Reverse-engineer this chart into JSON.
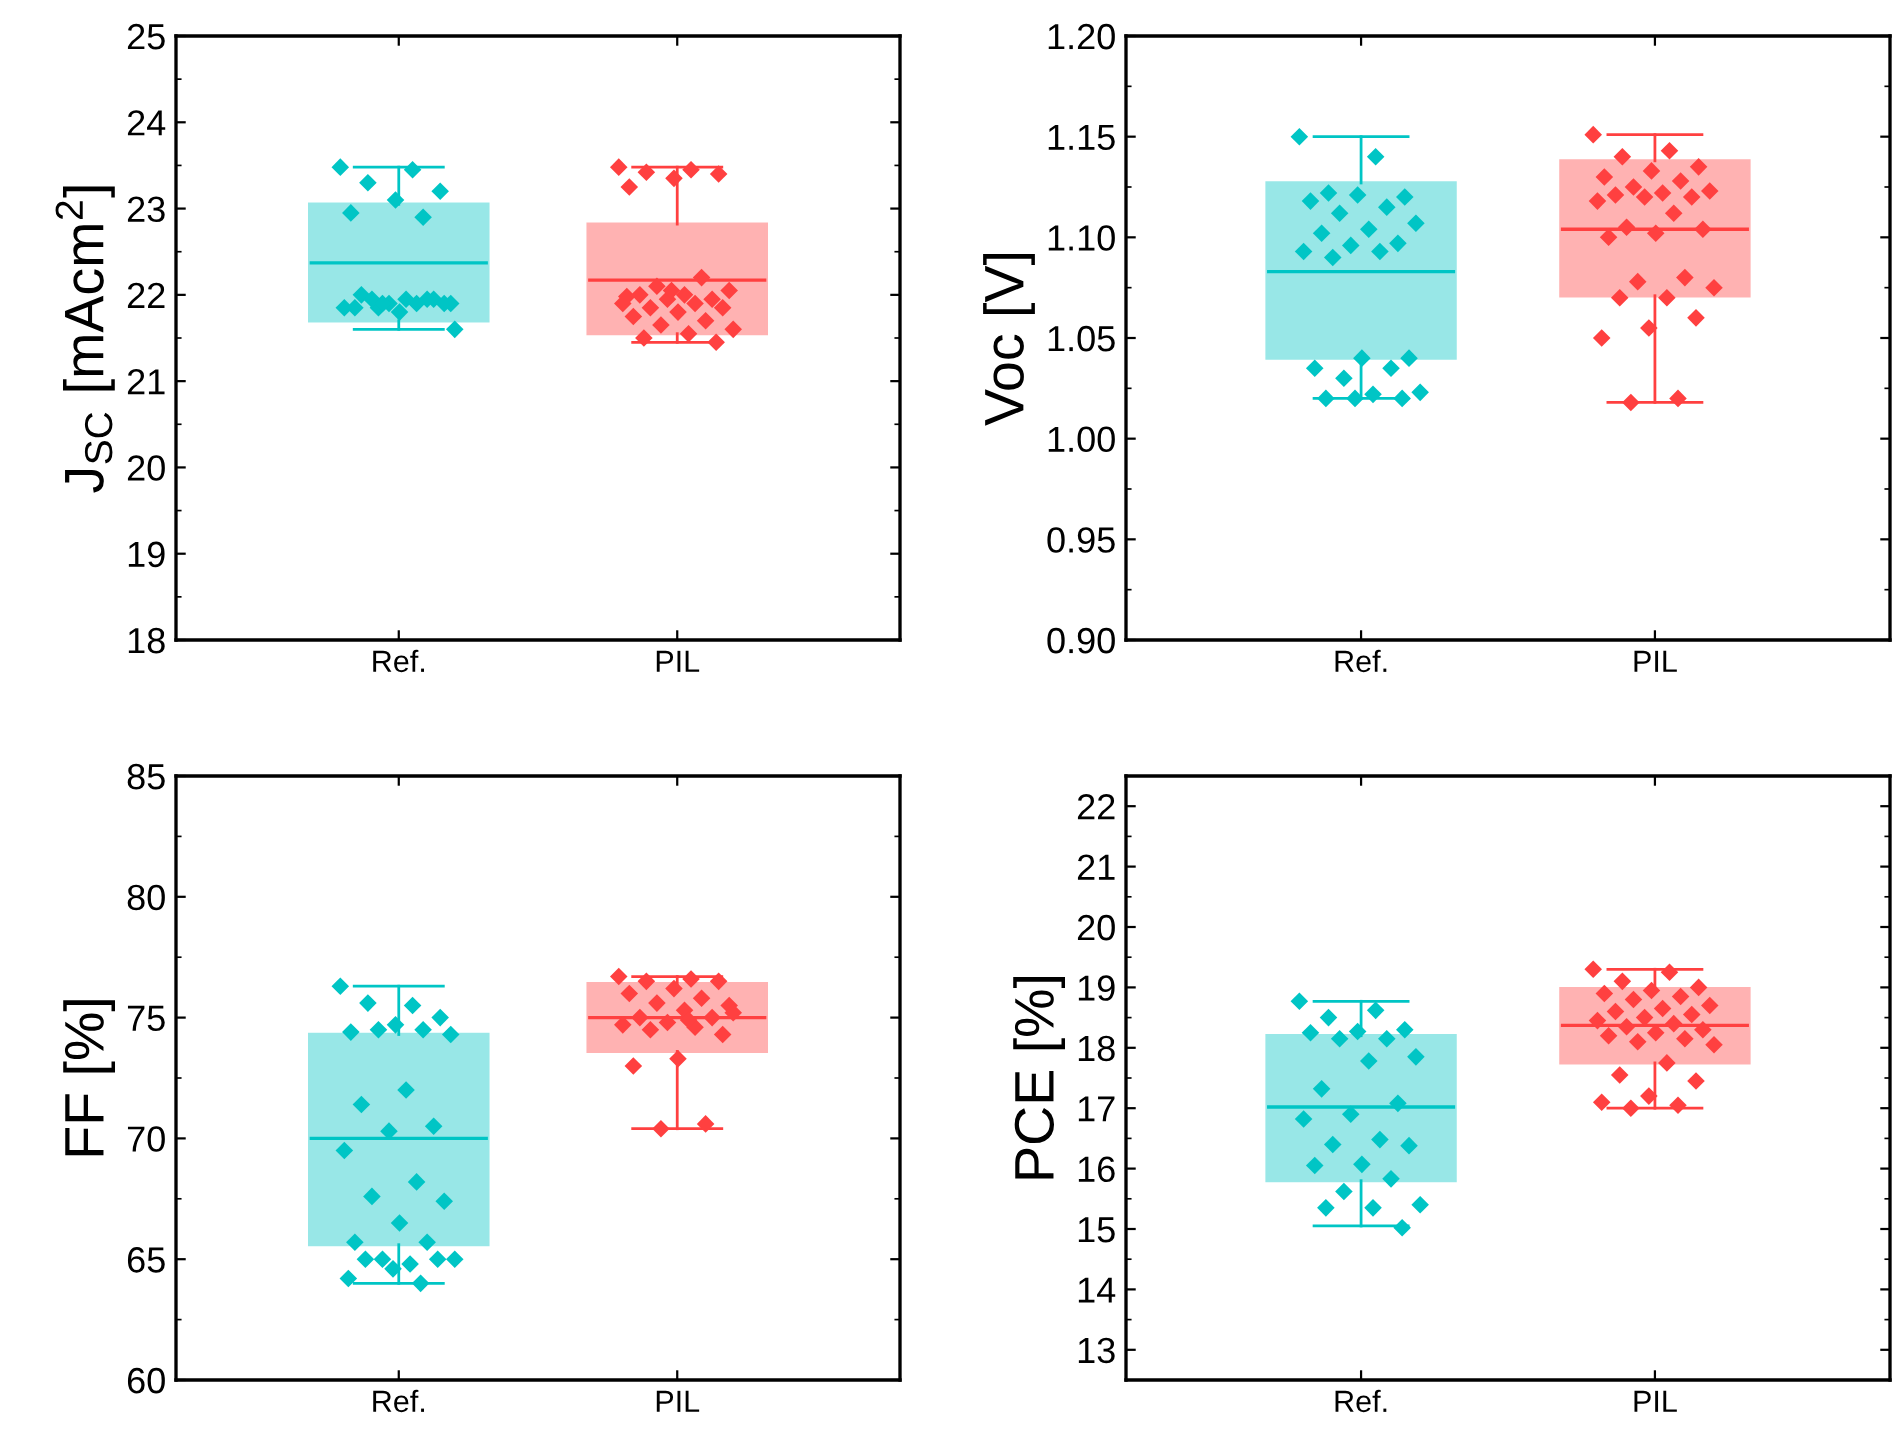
{
  "chart_data": [
    {
      "type": "box",
      "ylabel": "J$_{SC}$ [mAcm$^{2}$]",
      "categories": [
        "Ref.",
        "PIL"
      ],
      "ylim": [
        18,
        25
      ],
      "yticks": [
        18,
        19,
        20,
        21,
        22,
        23,
        24,
        25
      ],
      "grid": false,
      "legend": false,
      "marker": "diamond",
      "colors": [
        "#00c5c5",
        "#ff4040"
      ],
      "boxes": [
        {
          "low": 21.6,
          "q1": 21.7,
          "median": 22.37,
          "q3": 23.05,
          "high": 23.48
        },
        {
          "low": 21.45,
          "q1": 21.55,
          "median": 22.17,
          "q3": 22.82,
          "high": 23.48
        }
      ],
      "series": [
        {
          "type": "scatter",
          "color": "#00c5c5",
          "x": [
            "Ref.",
            "Ref.",
            "Ref.",
            "Ref.",
            "Ref.",
            "Ref.",
            "Ref.",
            "Ref.",
            "Ref.",
            "Ref.",
            "Ref.",
            "Ref.",
            "Ref.",
            "Ref.",
            "Ref.",
            "Ref.",
            "Ref.",
            "Ref.",
            "Ref.",
            "Ref.",
            "Ref.",
            "Ref."
          ],
          "values": [
            23.48,
            23.45,
            23.3,
            23.2,
            23.1,
            22.95,
            22.9,
            21.85,
            21.9,
            21.95,
            22.0,
            21.95,
            21.9,
            21.85,
            21.9,
            21.95,
            21.9,
            21.8,
            21.85,
            21.95,
            21.9,
            21.6
          ]
        },
        {
          "type": "scatter",
          "color": "#ff4040",
          "x": [
            "PIL",
            "PIL",
            "PIL",
            "PIL",
            "PIL",
            "PIL",
            "PIL",
            "PIL",
            "PIL",
            "PIL",
            "PIL",
            "PIL",
            "PIL",
            "PIL",
            "PIL",
            "PIL",
            "PIL",
            "PIL",
            "PIL",
            "PIL",
            "PIL",
            "PIL",
            "PIL",
            "PIL",
            "PIL",
            "PIL",
            "PIL"
          ],
          "values": [
            23.48,
            23.45,
            23.42,
            23.4,
            23.35,
            23.25,
            22.2,
            22.1,
            22.05,
            22.0,
            22.0,
            21.95,
            21.95,
            21.9,
            21.9,
            21.85,
            21.85,
            21.8,
            21.75,
            21.7,
            21.65,
            21.6,
            21.55,
            21.5,
            21.45,
            22.05,
            21.98
          ]
        }
      ]
    },
    {
      "type": "box",
      "ylabel": "Voc [V]",
      "categories": [
        "Ref.",
        "PIL"
      ],
      "ylim": [
        0.9,
        1.2
      ],
      "yticks": [
        {
          "value": 0.9,
          "label": "0.90"
        },
        {
          "value": 0.95,
          "label": "0.95"
        },
        {
          "value": 1.0,
          "label": "1.00"
        },
        {
          "value": 1.05,
          "label": "1.05"
        },
        {
          "value": 1.1,
          "label": "1.10"
        },
        {
          "value": 1.15,
          "label": "1.15"
        },
        {
          "value": 1.2,
          "label": "1.20"
        }
      ],
      "grid": false,
      "legend": false,
      "marker": "diamond",
      "colors": [
        "#00c5c5",
        "#ff4040"
      ],
      "boxes": [
        {
          "low": 1.02,
          "q1": 1.04,
          "median": 1.083,
          "q3": 1.127,
          "high": 1.15
        },
        {
          "low": 1.018,
          "q1": 1.071,
          "median": 1.104,
          "q3": 1.138,
          "high": 1.151
        }
      ],
      "series": [
        {
          "type": "scatter",
          "color": "#00c5c5",
          "x": [
            "Ref.",
            "Ref.",
            "Ref.",
            "Ref.",
            "Ref.",
            "Ref.",
            "Ref.",
            "Ref.",
            "Ref.",
            "Ref.",
            "Ref.",
            "Ref.",
            "Ref.",
            "Ref.",
            "Ref.",
            "Ref.",
            "Ref.",
            "Ref.",
            "Ref.",
            "Ref.",
            "Ref.",
            "Ref.",
            "Ref.",
            "Ref.",
            "Ref.",
            "Ref."
          ],
          "values": [
            1.15,
            1.14,
            1.122,
            1.12,
            1.121,
            1.118,
            1.115,
            1.112,
            1.107,
            1.104,
            1.102,
            1.097,
            1.096,
            1.093,
            1.093,
            1.09,
            1.04,
            1.04,
            1.035,
            1.035,
            1.03,
            1.023,
            1.022,
            1.02,
            1.02,
            1.02
          ]
        },
        {
          "type": "scatter",
          "color": "#ff4040",
          "x": [
            "PIL",
            "PIL",
            "PIL",
            "PIL",
            "PIL",
            "PIL",
            "PIL",
            "PIL",
            "PIL",
            "PIL",
            "PIL",
            "PIL",
            "PIL",
            "PIL",
            "PIL",
            "PIL",
            "PIL",
            "PIL",
            "PIL",
            "PIL",
            "PIL",
            "PIL",
            "PIL",
            "PIL",
            "PIL",
            "PIL",
            "PIL",
            "PIL",
            "PIL"
          ],
          "values": [
            1.151,
            1.143,
            1.14,
            1.135,
            1.133,
            1.13,
            1.128,
            1.125,
            1.123,
            1.122,
            1.121,
            1.12,
            1.12,
            1.118,
            1.112,
            1.105,
            1.104,
            1.102,
            1.1,
            1.08,
            1.078,
            1.075,
            1.07,
            1.07,
            1.06,
            1.055,
            1.05,
            1.02,
            1.018
          ]
        }
      ]
    },
    {
      "type": "box",
      "ylabel": "FF [%]",
      "categories": [
        "Ref.",
        "PIL"
      ],
      "ylim": [
        60,
        85
      ],
      "yticks": [
        60,
        65,
        70,
        75,
        80,
        85
      ],
      "grid": false,
      "legend": false,
      "marker": "diamond",
      "colors": [
        "#00c5c5",
        "#ff4040"
      ],
      "boxes": [
        {
          "low": 64.0,
          "q1": 65.6,
          "median": 70.0,
          "q3": 74.3,
          "high": 76.3
        },
        {
          "low": 70.4,
          "q1": 73.6,
          "median": 75.0,
          "q3": 76.4,
          "high": 76.7
        }
      ],
      "series": [
        {
          "type": "scatter",
          "color": "#00c5c5",
          "x": [
            "Ref.",
            "Ref.",
            "Ref.",
            "Ref.",
            "Ref.",
            "Ref.",
            "Ref.",
            "Ref.",
            "Ref.",
            "Ref.",
            "Ref.",
            "Ref.",
            "Ref.",
            "Ref.",
            "Ref.",
            "Ref.",
            "Ref.",
            "Ref.",
            "Ref.",
            "Ref.",
            "Ref.",
            "Ref.",
            "Ref.",
            "Ref.",
            "Ref.",
            "Ref.",
            "Ref.",
            "Ref."
          ],
          "values": [
            76.3,
            75.5,
            75.6,
            75.0,
            74.7,
            74.4,
            74.5,
            74.5,
            74.3,
            72.0,
            71.4,
            70.5,
            70.3,
            69.5,
            68.2,
            67.6,
            67.4,
            66.5,
            65.7,
            65.7,
            65.0,
            65.0,
            64.8,
            65.0,
            65.0,
            64.6,
            64.2,
            64.0
          ]
        },
        {
          "type": "scatter",
          "color": "#ff4040",
          "x": [
            "PIL",
            "PIL",
            "PIL",
            "PIL",
            "PIL",
            "PIL",
            "PIL",
            "PIL",
            "PIL",
            "PIL",
            "PIL",
            "PIL",
            "PIL",
            "PIL",
            "PIL",
            "PIL",
            "PIL",
            "PIL",
            "PIL",
            "PIL",
            "PIL",
            "PIL",
            "PIL"
          ],
          "values": [
            76.7,
            76.6,
            76.5,
            76.5,
            76.2,
            76.0,
            75.8,
            75.6,
            75.5,
            75.3,
            75.0,
            75.0,
            74.8,
            74.7,
            74.6,
            74.5,
            74.3,
            73.3,
            73.0,
            70.6,
            70.4,
            75.2,
            74.9
          ]
        }
      ]
    },
    {
      "type": "box",
      "ylabel": "PCE [%]",
      "categories": [
        "Ref.",
        "PIL"
      ],
      "ylim": [
        12.5,
        22.5
      ],
      "yticks": [
        13,
        14,
        15,
        16,
        17,
        18,
        19,
        20,
        21,
        22
      ],
      "grid": false,
      "legend": false,
      "marker": "diamond",
      "colors": [
        "#00c5c5",
        "#ff4040"
      ],
      "boxes": [
        {
          "low": 15.05,
          "q1": 15.8,
          "median": 17.02,
          "q3": 18.2,
          "high": 18.77
        },
        {
          "low": 17.0,
          "q1": 17.75,
          "median": 18.37,
          "q3": 18.98,
          "high": 19.3
        }
      ],
      "series": [
        {
          "type": "scatter",
          "color": "#00c5c5",
          "x": [
            "Ref.",
            "Ref.",
            "Ref.",
            "Ref.",
            "Ref.",
            "Ref.",
            "Ref.",
            "Ref.",
            "Ref.",
            "Ref.",
            "Ref.",
            "Ref.",
            "Ref.",
            "Ref.",
            "Ref.",
            "Ref.",
            "Ref.",
            "Ref.",
            "Ref.",
            "Ref.",
            "Ref.",
            "Ref.",
            "Ref.",
            "Ref.",
            "Ref."
          ],
          "values": [
            18.77,
            18.62,
            18.5,
            18.3,
            18.27,
            18.25,
            18.15,
            18.15,
            17.85,
            17.78,
            17.32,
            17.08,
            16.9,
            16.82,
            16.48,
            16.4,
            16.38,
            16.07,
            16.05,
            15.83,
            15.62,
            15.4,
            15.35,
            15.35,
            15.02
          ]
        },
        {
          "type": "scatter",
          "color": "#ff4040",
          "x": [
            "PIL",
            "PIL",
            "PIL",
            "PIL",
            "PIL",
            "PIL",
            "PIL",
            "PIL",
            "PIL",
            "PIL",
            "PIL",
            "PIL",
            "PIL",
            "PIL",
            "PIL",
            "PIL",
            "PIL",
            "PIL",
            "PIL",
            "PIL",
            "PIL",
            "PIL",
            "PIL",
            "PIL",
            "PIL",
            "PIL",
            "PIL",
            "PIL",
            "PIL"
          ],
          "values": [
            19.3,
            19.25,
            19.1,
            19.0,
            18.95,
            18.9,
            18.85,
            18.8,
            18.7,
            18.65,
            18.6,
            18.55,
            18.5,
            18.45,
            18.4,
            18.35,
            18.3,
            18.25,
            18.2,
            18.15,
            18.1,
            18.05,
            17.75,
            17.55,
            17.45,
            17.2,
            17.1,
            17.05,
            17.0
          ]
        }
      ]
    }
  ]
}
